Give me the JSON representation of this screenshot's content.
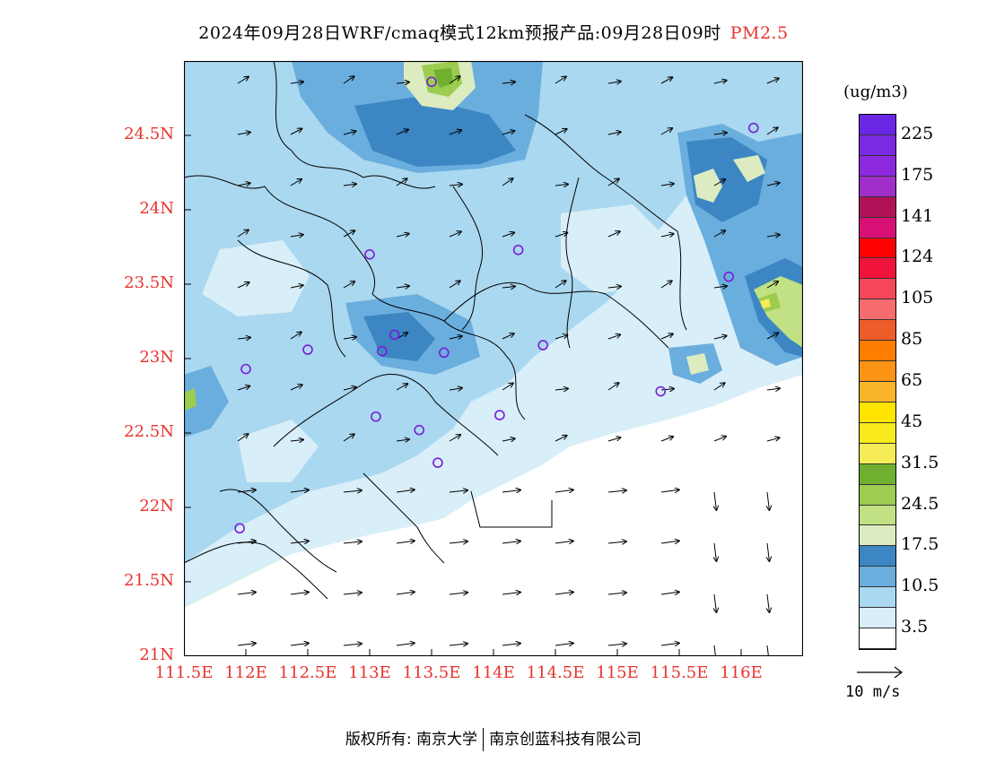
{
  "header": {
    "title": "2024年09月28日WRF/cmaq模式12km预报产品:09月28日09时",
    "variable": "PM2.5"
  },
  "map": {
    "lat_ticks": [
      "24.5N",
      "24N",
      "23.5N",
      "23N",
      "22.5N",
      "22N",
      "21.5N",
      "21N"
    ],
    "lon_ticks": [
      "111.5E",
      "112E",
      "112.5E",
      "113E",
      "113.5E",
      "114E",
      "114.5E",
      "115E",
      "115.5E",
      "116E"
    ],
    "lat_range": [
      21,
      25
    ],
    "lon_range": [
      111.5,
      116.5
    ],
    "stations": [
      {
        "lon": 113.5,
        "lat": 24.86
      },
      {
        "lon": 116.1,
        "lat": 24.55
      },
      {
        "lon": 115.9,
        "lat": 23.55
      },
      {
        "lon": 113.0,
        "lat": 23.7
      },
      {
        "lon": 114.2,
        "lat": 23.73
      },
      {
        "lon": 112.5,
        "lat": 23.06
      },
      {
        "lon": 112.0,
        "lat": 22.93
      },
      {
        "lon": 113.1,
        "lat": 23.05
      },
      {
        "lon": 113.2,
        "lat": 23.16
      },
      {
        "lon": 113.6,
        "lat": 23.04
      },
      {
        "lon": 114.4,
        "lat": 23.09
      },
      {
        "lon": 113.05,
        "lat": 22.61
      },
      {
        "lon": 113.4,
        "lat": 22.52
      },
      {
        "lon": 114.05,
        "lat": 22.62
      },
      {
        "lon": 115.35,
        "lat": 22.78
      },
      {
        "lon": 113.55,
        "lat": 22.3
      },
      {
        "lon": 111.95,
        "lat": 21.86
      }
    ]
  },
  "colorbar": {
    "unit": "(ug/m3)",
    "colors": [
      "#ffffff",
      "#d8eef8",
      "#aad8f0",
      "#6aaede",
      "#3c86c4",
      "#dcecc0",
      "#c2e084",
      "#9ccc50",
      "#70b030",
      "#f5ec58",
      "#f8ea1c",
      "#ffe400",
      "#f9b42c",
      "#fb9414",
      "#fd7e00",
      "#ee5c2a",
      "#f76d6d",
      "#f5465a",
      "#f0133c",
      "#ff0000",
      "#d81075",
      "#b01258",
      "#a02ec8",
      "#8c28e0",
      "#7a2ae2",
      "#6b27e5"
    ],
    "labels": [
      "3.5",
      "10.5",
      "17.5",
      "24.5",
      "31.5",
      "45",
      "65",
      "85",
      "105",
      "124",
      "141",
      "175",
      "225"
    ]
  },
  "wind_reference": {
    "label": "10 m/s"
  },
  "footer": {
    "left": "版权所有: 南京大学",
    "right": "南京创蓝科技有限公司"
  }
}
